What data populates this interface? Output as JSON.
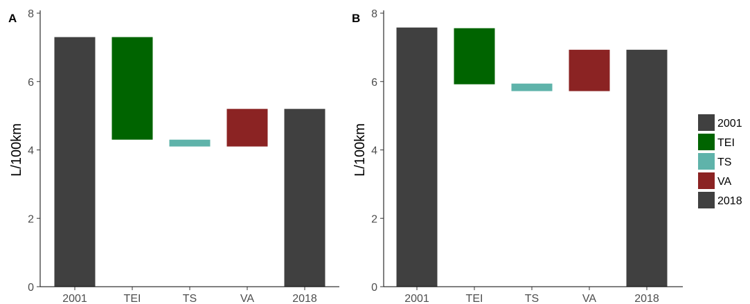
{
  "chart_data": [
    {
      "panel": "A",
      "type": "bar",
      "subtype": "waterfall",
      "ylabel": "L/100km",
      "ylim": [
        0,
        8
      ],
      "yticks": [
        0,
        2,
        4,
        6,
        8
      ],
      "categories": [
        "2001",
        "TEI",
        "TS",
        "VA",
        "2018"
      ],
      "bars": [
        {
          "category": "2001",
          "start": 0,
          "end": 7.3
        },
        {
          "category": "TEI",
          "start": 7.3,
          "end": 4.3
        },
        {
          "category": "TS",
          "start": 4.3,
          "end": 4.1
        },
        {
          "category": "VA",
          "start": 4.1,
          "end": 5.2
        },
        {
          "category": "2018",
          "start": 0,
          "end": 5.2
        }
      ]
    },
    {
      "panel": "B",
      "type": "bar",
      "subtype": "waterfall",
      "ylabel": "L/100km",
      "ylim": [
        0,
        8
      ],
      "yticks": [
        0,
        2,
        4,
        6,
        8
      ],
      "categories": [
        "2001",
        "TEI",
        "TS",
        "VA",
        "2018"
      ],
      "bars": [
        {
          "category": "2001",
          "start": 0,
          "end": 7.58
        },
        {
          "category": "TEI",
          "start": 7.56,
          "end": 5.92
        },
        {
          "category": "TS",
          "start": 5.94,
          "end": 5.72
        },
        {
          "category": "VA",
          "start": 5.72,
          "end": 6.93
        },
        {
          "category": "2018",
          "start": 0,
          "end": 6.93
        }
      ]
    }
  ],
  "legend": {
    "position": "right",
    "items": [
      {
        "label": "2001",
        "color": "#404040"
      },
      {
        "label": "TEI",
        "color": "#006400"
      },
      {
        "label": "TS",
        "color": "#5fb3aa"
      },
      {
        "label": "VA",
        "color": "#8b2323"
      },
      {
        "label": "2018",
        "color": "#404040"
      }
    ]
  }
}
